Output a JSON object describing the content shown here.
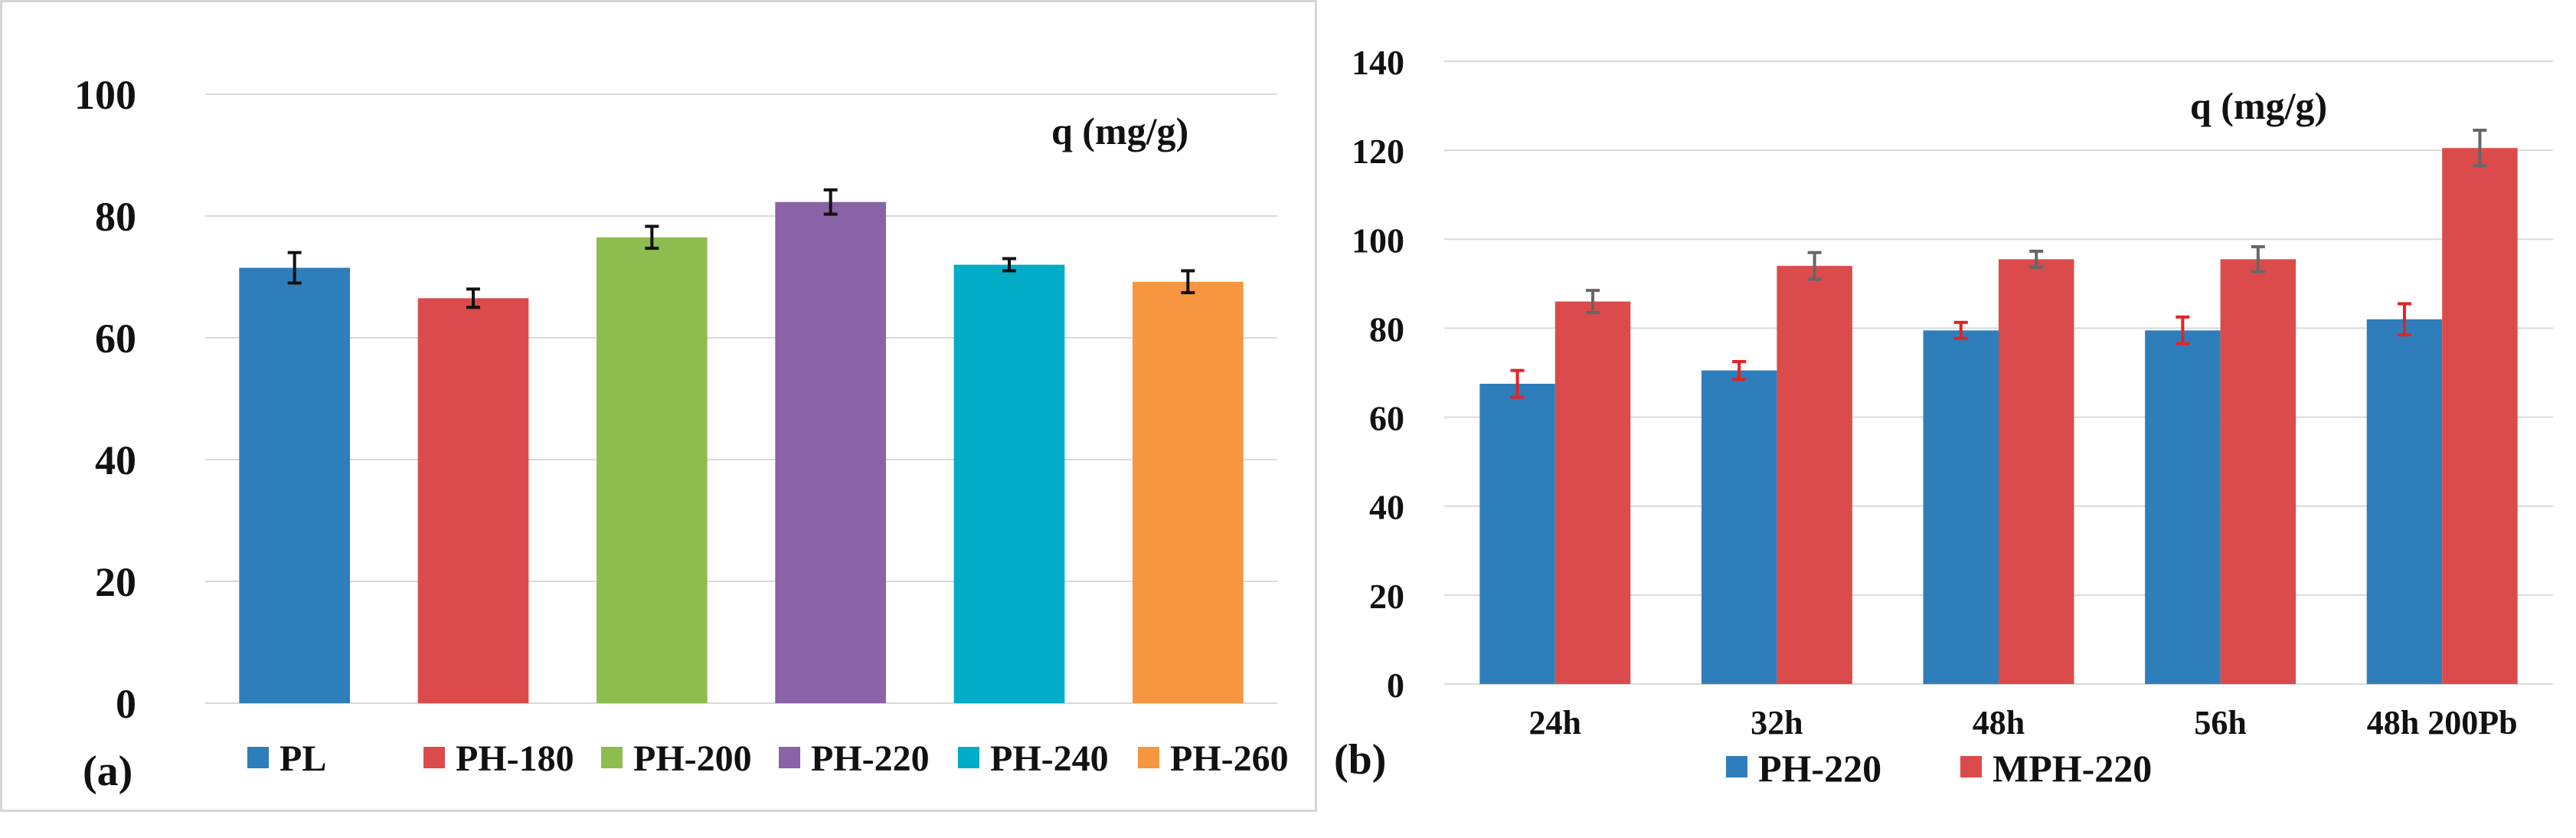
{
  "chart_data": [
    {
      "panel_label": "(a)",
      "type": "bar",
      "title": "q (mg/g)",
      "categories": [
        "PL",
        "PH-180",
        "PH-200",
        "PH-220",
        "PH-240",
        "PH-260"
      ],
      "values": [
        71.5,
        66.5,
        76.5,
        82.3,
        72.0,
        69.2
      ],
      "errors": [
        2.5,
        1.5,
        1.8,
        2.0,
        1.0,
        1.8
      ],
      "colors": [
        "#2e7ebc",
        "#db4b4b",
        "#8fbc4e",
        "#8a62a6",
        "#00acc6",
        "#f79640"
      ],
      "legend": [
        "PL",
        "PH-180",
        "PH-200",
        "PH-220",
        "PH-240",
        "PH-260"
      ],
      "legend_position": "bottom",
      "yticks": [
        "0",
        "20",
        "40",
        "60",
        "80",
        "100"
      ],
      "ylim": [
        0,
        100
      ],
      "grid": true
    },
    {
      "panel_label": "(b)",
      "type": "bar",
      "title": "q (mg/g)",
      "categories": [
        "24h",
        "32h",
        "48h",
        "56h",
        "48h 200Pb"
      ],
      "series": [
        {
          "name": "PH-220",
          "color": "#2e7ebc",
          "error_color": "#e52222",
          "values": [
            67.5,
            70.5,
            79.5,
            79.5,
            82.0
          ],
          "errors": [
            3.0,
            2.0,
            1.8,
            3.0,
            3.5
          ]
        },
        {
          "name": "MPH-220",
          "color": "#db4b4b",
          "error_color": "#666666",
          "values": [
            86.0,
            94.0,
            95.5,
            95.5,
            120.5
          ],
          "errors": [
            2.5,
            3.0,
            1.8,
            2.8,
            4.0
          ]
        }
      ],
      "legend_position": "bottom",
      "yticks": [
        "0",
        "20",
        "40",
        "60",
        "80",
        "100",
        "120",
        "140"
      ],
      "ylim": [
        0,
        140
      ],
      "grid": true
    }
  ]
}
